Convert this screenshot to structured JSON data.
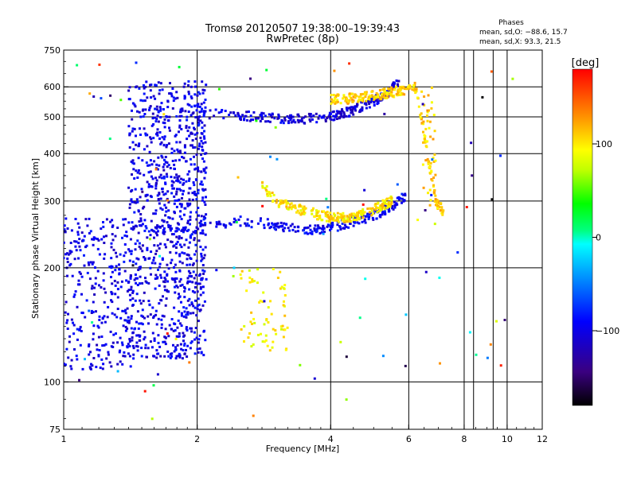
{
  "chart_data": {
    "type": "scatter",
    "title": "Tromsø 20120507 19:38:00–19:39:43",
    "subtitle": "RwPretec (8p)",
    "xlabel": "Frequency [MHz]",
    "ylabel": "Stationary phase Virtual Height [km]",
    "x_scale": "log",
    "y_scale": "log",
    "xlim": [
      1,
      12
    ],
    "ylim": [
      75,
      750
    ],
    "x_ticks": [
      1,
      2,
      4,
      6,
      8,
      10,
      12
    ],
    "x_tick_labels": [
      "1",
      "2",
      "4",
      "6",
      "8",
      "10",
      "12"
    ],
    "x_minor_gridlines": [
      8.4,
      9.3
    ],
    "y_ticks": [
      75,
      100,
      200,
      300,
      400,
      500,
      600,
      750
    ],
    "y_tick_labels": [
      "75",
      "100",
      "200",
      "300",
      "400",
      "500",
      "600",
      "750"
    ],
    "grid": true,
    "phase_stats": {
      "title": "Phases",
      "line_o": "mean, sd,O: −88.6, 15.7",
      "line_x": "mean, sd,X:  93.3, 21.5"
    },
    "colorbar": {
      "label": "[deg]",
      "range": [
        -180,
        180
      ],
      "ticks": [
        100,
        0,
        -100
      ],
      "tick_labels": [
        "100",
        "0",
        "−100"
      ]
    },
    "series": [
      {
        "name": "O-mode spread F (low frequency, dense echoes)",
        "phase_deg": -100,
        "f_range_mhz": [
          1.0,
          2.1
        ],
        "h_range_km": [
          110,
          640
        ]
      },
      {
        "name": "O-mode F-region upper trace",
        "phase_deg": -105,
        "f_points_mhz": [
          2.0,
          2.5,
          3.0,
          3.5,
          4.0,
          4.5,
          5.0,
          5.4,
          5.7
        ],
        "h_points_km": [
          510,
          505,
          495,
          495,
          500,
          520,
          550,
          580,
          620
        ]
      },
      {
        "name": "O-mode F-region lower trace",
        "phase_deg": -95,
        "f_points_mhz": [
          1.6,
          2.0,
          2.5,
          3.0,
          3.5,
          4.0,
          4.5,
          5.0,
          5.5,
          5.9
        ],
        "h_points_km": [
          250,
          255,
          265,
          260,
          250,
          255,
          265,
          275,
          290,
          310
        ]
      },
      {
        "name": "X-mode F-region lower trace",
        "phase_deg": 100,
        "f_points_mhz": [
          2.8,
          3.0,
          3.4,
          3.8,
          4.2,
          4.6,
          5.0,
          5.5
        ],
        "h_points_km": [
          330,
          300,
          285,
          275,
          270,
          275,
          285,
          300
        ]
      },
      {
        "name": "X-mode F-region upper trace / cusp",
        "phase_deg": 110,
        "f_points_mhz": [
          4.0,
          4.5,
          5.0,
          5.5,
          6.2,
          6.6,
          6.9,
          7.2
        ],
        "h_points_km": [
          555,
          560,
          570,
          580,
          600,
          400,
          300,
          280
        ]
      },
      {
        "name": "X-mode sporadic low echoes",
        "phase_deg": 95,
        "f_range_mhz": [
          2.5,
          3.2
        ],
        "h_range_km": [
          120,
          200
        ]
      }
    ]
  }
}
